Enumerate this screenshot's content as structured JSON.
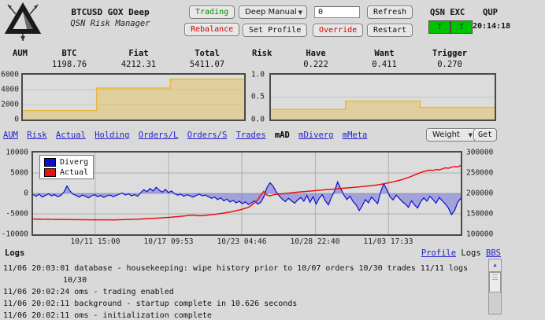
{
  "header": {
    "title": "BTCUSD GOX Deep",
    "subtitle": "QSN Risk Manager",
    "trading_btn": "Trading",
    "rebalance_btn": "Rebalance",
    "mode_select": "Deep Manual",
    "set_profile_btn": "Set Profile",
    "override_input_value": "0",
    "override_btn": "Override",
    "refresh_btn": "Refresh",
    "restart_btn": "Restart",
    "status": {
      "left_label": "QSN EXC",
      "right_label": "QUP",
      "qsn_state": "T",
      "exc_state": "T",
      "time": "20:14:18",
      "state_color": "#00c300"
    }
  },
  "aum": {
    "label": "AUM",
    "cols": [
      {
        "h": "BTC",
        "v": "1198.76"
      },
      {
        "h": "Fiat",
        "v": "4212.31"
      },
      {
        "h": "Total",
        "v": "5411.07"
      }
    ]
  },
  "risk": {
    "label": "Risk",
    "cols": [
      {
        "h": "Have",
        "v": "0.222"
      },
      {
        "h": "Want",
        "v": "0.411"
      },
      {
        "h": "Trigger",
        "v": "0.270"
      }
    ]
  },
  "nav": {
    "links": [
      "AUM",
      "Risk",
      "Actual",
      "Holding",
      "Orders/L",
      "Orders/S",
      "Trades"
    ],
    "active": "mAD",
    "links_after": [
      "mDiverg",
      "mMeta"
    ],
    "weight_select": "Weight",
    "get_btn": "Get"
  },
  "logs": {
    "title": "Logs",
    "profile_link": "Profile",
    "logs_label": "Logs",
    "bbs_link": "BBS",
    "lines": [
      "11/06 20:03:01 database - housekeeping: wipe history prior to 10/07 orders 10/30 trades 11/11 logs",
      "10/30",
      "11/06 20:02:24 oms - trading enabled",
      "11/06 20:02:11 background - startup complete in 10.626 seconds",
      "11/06 20:02:11 oms - initialization complete"
    ]
  },
  "colors": {
    "background": "#d9d9d9",
    "link_blue": "#2323cc",
    "trading_green": "#008a00",
    "alert_red": "#cf0000",
    "step_yellow": "#e8b93f",
    "diverg_blue": "#0d0dd6",
    "actual_red": "#e81212"
  },
  "chart_data": [
    {
      "type": "area",
      "name": "aum-history",
      "style": "step",
      "values": [
        1198.76,
        4212.31,
        5411.07
      ],
      "ylim": [
        0,
        6000
      ],
      "gridlines": [
        2000,
        4000
      ],
      "yticks": [
        "6000",
        "4000",
        "2000",
        "0"
      ],
      "color": "#e8b93f",
      "fill": "rgba(232,185,63,0.40)"
    },
    {
      "type": "area",
      "name": "risk-history",
      "style": "step",
      "values": [
        0.222,
        0.411,
        0.27
      ],
      "ylim": [
        0,
        1
      ],
      "gridlines": [
        0.5
      ],
      "yticks": [
        "1.0",
        "0.5",
        "0.0"
      ],
      "color": "#e8b93f",
      "fill": "rgba(232,185,63,0.40)"
    },
    {
      "type": "line",
      "name": "mad-main-chart",
      "legend": [
        "Diverg",
        "Actual"
      ],
      "left_ylim": [
        -10000,
        10000
      ],
      "left_yticks": [
        "10000",
        "5000",
        "0",
        "-5000",
        "-10000"
      ],
      "right_ylim": [
        100000,
        300000
      ],
      "right_yticks": [
        "300000",
        "250000",
        "200000",
        "150000",
        "100000"
      ],
      "xticks": [
        {
          "pos": 0.145,
          "label": "10/11 15:00"
        },
        {
          "pos": 0.317,
          "label": "10/17 09:53"
        },
        {
          "pos": 0.488,
          "label": "10/23 04:46"
        },
        {
          "pos": 0.66,
          "label": "10/28 22:40"
        },
        {
          "pos": 0.831,
          "label": "11/03 17:33"
        }
      ],
      "series": [
        {
          "name": "Diverg",
          "axis": "left",
          "color": "#0d0dd6",
          "fill": "rgba(80,80,215,0.42)",
          "values": [
            -300,
            -700,
            -200,
            -900,
            -500,
            -100,
            -600,
            -300,
            -800,
            -500,
            300,
            1800,
            600,
            -200,
            -500,
            -900,
            -400,
            -700,
            -1100,
            -600,
            -300,
            -800,
            -500,
            -1000,
            -600,
            -400,
            -800,
            -500,
            -200,
            100,
            -400,
            -100,
            -600,
            -300,
            -700,
            200,
            900,
            400,
            1200,
            600,
            1500,
            800,
            300,
            1000,
            200,
            600,
            -100,
            -400,
            -200,
            -700,
            -300,
            -600,
            -900,
            -500,
            -200,
            -600,
            -400,
            -800,
            -1200,
            -900,
            -1500,
            -1100,
            -1800,
            -1400,
            -2100,
            -1700,
            -2300,
            -1900,
            -2500,
            -2100,
            -2700,
            -2300,
            -1800,
            -2600,
            -2200,
            -800,
            1400,
            2600,
            1800,
            400,
            -600,
            -1400,
            -2000,
            -1200,
            -1800,
            -2400,
            -1600,
            -1000,
            -1900,
            -500,
            -2200,
            -800,
            -2600,
            -1200,
            -300,
            -1800,
            -2800,
            -900,
            600,
            2800,
            1200,
            -400,
            -1500,
            -700,
            -2000,
            -2800,
            -4200,
            -3000,
            -1500,
            -2300,
            -900,
            -1700,
            -2500,
            400,
            2400,
            900,
            -800,
            -1600,
            -400,
            -1200,
            -2000,
            -2600,
            -3400,
            -1800,
            -2800,
            -3600,
            -2000,
            -1100,
            -1900,
            -700,
            -1500,
            -2400,
            -1000,
            -1800,
            -2600,
            -3600,
            -5200,
            -4200,
            -2200,
            -1200
          ]
        },
        {
          "name": "Actual",
          "axis": "right",
          "color": "#e81212",
          "values": [
            137500,
            137200,
            137400,
            137000,
            136800,
            136900,
            136600,
            136400,
            136500,
            136200,
            136000,
            136100,
            135900,
            135800,
            135700,
            135800,
            135600,
            135500,
            135600,
            135400,
            135500,
            135300,
            135400,
            135500,
            135300,
            135400,
            135200,
            135300,
            135500,
            135700,
            136000,
            136200,
            136500,
            136800,
            137100,
            137400,
            137800,
            138200,
            138600,
            139000,
            139500,
            140000,
            140400,
            140900,
            141400,
            142000,
            142600,
            143300,
            144000,
            144800,
            145600,
            146500,
            147000,
            146200,
            145400,
            145800,
            146400,
            147100,
            147900,
            148800,
            149800,
            150900,
            152000,
            153200,
            154500,
            156000,
            157600,
            159400,
            161400,
            163600,
            166000,
            171000,
            177000,
            184000,
            196000,
            205000,
            196000,
            194000,
            196500,
            197500,
            198500,
            199000,
            200000,
            200800,
            201500,
            202300,
            203000,
            203800,
            204500,
            205000,
            205800,
            206300,
            207000,
            207800,
            208300,
            209000,
            209600,
            210200,
            210800,
            211500,
            212000,
            212800,
            213400,
            214000,
            214700,
            215300,
            216000,
            216800,
            217500,
            218300,
            219000,
            220000,
            221000,
            222200,
            223500,
            225000,
            226500,
            228200,
            230000,
            232000,
            234000,
            236500,
            239000,
            242000,
            245000,
            248000,
            251000,
            253500,
            255500,
            257000,
            256000,
            258500,
            257500,
            260000,
            262500,
            261500,
            264000,
            266000,
            265000,
            268000
          ]
        }
      ]
    }
  ]
}
